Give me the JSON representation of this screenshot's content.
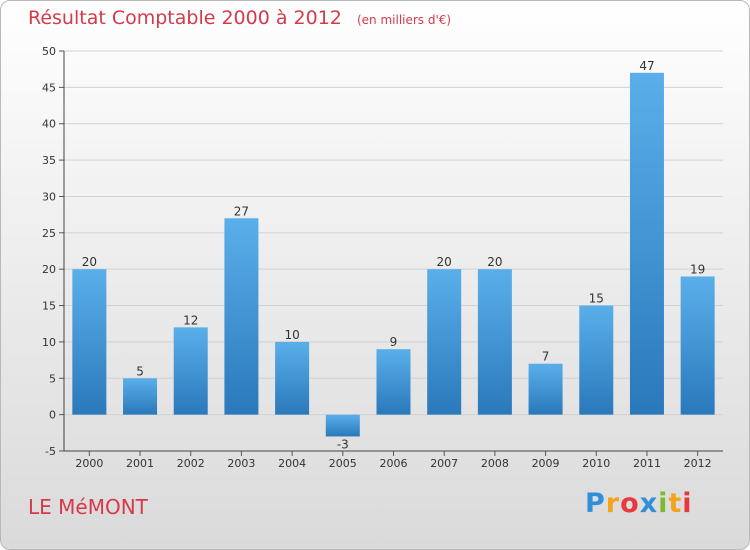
{
  "chart_data": {
    "type": "bar",
    "title": "Résultat Comptable 2000 à 2012",
    "subtitle": "(en milliers d'€)",
    "categories": [
      "2000",
      "2001",
      "2002",
      "2003",
      "2004",
      "2005",
      "2006",
      "2007",
      "2008",
      "2009",
      "2010",
      "2011",
      "2012"
    ],
    "values": [
      20,
      5,
      12,
      27,
      10,
      -3,
      9,
      20,
      20,
      7,
      15,
      47,
      19
    ],
    "ylim": [
      -5,
      50
    ],
    "yticks": [
      -5,
      0,
      5,
      10,
      15,
      20,
      25,
      30,
      35,
      40,
      45,
      50
    ],
    "xlabel": "",
    "ylabel": "",
    "grid": true,
    "legend": "none",
    "bar_color_light": "#5aafea",
    "bar_color_dark": "#2a79bb"
  },
  "commune": "LE MéMONT",
  "logo": {
    "letters": [
      {
        "ch": "P",
        "color": "#2f8fd8"
      },
      {
        "ch": "r",
        "color": "#f2a51c"
      },
      {
        "ch": "o",
        "color": "#e8373e"
      },
      {
        "ch": "x",
        "color": "#2f8fd8"
      },
      {
        "ch": "i",
        "color": "#7dbb2c"
      },
      {
        "ch": "t",
        "color": "#f2a51c"
      },
      {
        "ch": "i",
        "color": "#e8373e"
      }
    ]
  }
}
